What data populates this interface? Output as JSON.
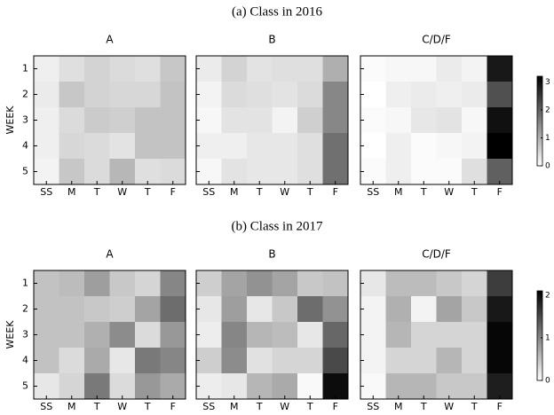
{
  "chart_data": [
    {
      "type": "heatmap",
      "title": "(a) Class in 2016",
      "ylabel": "WEEK",
      "x_categories": [
        "SS",
        "M",
        "T",
        "W",
        "T",
        "F"
      ],
      "y_categories": [
        1,
        2,
        3,
        4,
        5
      ],
      "colormap": "gray_r",
      "clim": [
        0,
        3.2
      ],
      "cticks": [
        0,
        1,
        2,
        3
      ],
      "panels": [
        {
          "title": "A",
          "values": [
            [
              0.2,
              0.4,
              0.55,
              0.45,
              0.4,
              0.7
            ],
            [
              0.25,
              0.7,
              0.55,
              0.5,
              0.5,
              0.75
            ],
            [
              0.2,
              0.45,
              0.65,
              0.6,
              0.75,
              0.75
            ],
            [
              0.2,
              0.5,
              0.45,
              0.35,
              0.75,
              0.75
            ],
            [
              0.15,
              0.7,
              0.45,
              0.9,
              0.4,
              0.45
            ]
          ]
        },
        {
          "title": "B",
          "values": [
            [
              0.25,
              0.55,
              0.35,
              0.4,
              0.4,
              1.0
            ],
            [
              0.15,
              0.45,
              0.4,
              0.35,
              0.45,
              1.5
            ],
            [
              0.1,
              0.35,
              0.35,
              0.15,
              0.6,
              1.5
            ],
            [
              0.2,
              0.2,
              0.3,
              0.3,
              0.4,
              1.8
            ],
            [
              0.1,
              0.35,
              0.3,
              0.3,
              0.4,
              1.8
            ]
          ]
        },
        {
          "title": "C/D/F",
          "values": [
            [
              0.05,
              0.1,
              0.1,
              0.25,
              0.15,
              2.9
            ],
            [
              0.0,
              0.2,
              0.25,
              0.2,
              0.25,
              2.2
            ],
            [
              0.05,
              0.1,
              0.3,
              0.35,
              0.1,
              3.0
            ],
            [
              0.0,
              0.2,
              0.05,
              0.1,
              0.15,
              3.2
            ],
            [
              0.05,
              0.2,
              0.05,
              0.05,
              0.4,
              2.0
            ]
          ]
        }
      ]
    },
    {
      "type": "heatmap",
      "title": "(b) Class in 2017",
      "ylabel": "WEEK",
      "x_categories": [
        "SS",
        "M",
        "T",
        "W",
        "T",
        "F"
      ],
      "y_categories": [
        1,
        2,
        3,
        4,
        5
      ],
      "colormap": "gray_r",
      "clim": [
        0,
        2.1
      ],
      "cticks": [
        0,
        1,
        2
      ],
      "panels": [
        {
          "title": "A",
          "values": [
            [
              0.5,
              0.55,
              0.8,
              0.45,
              0.35,
              1.0
            ],
            [
              0.5,
              0.5,
              0.45,
              0.4,
              0.75,
              1.2
            ],
            [
              0.5,
              0.5,
              0.65,
              0.95,
              0.3,
              0.85
            ],
            [
              0.5,
              0.3,
              0.7,
              0.2,
              1.1,
              1.0
            ],
            [
              0.2,
              0.35,
              1.1,
              0.3,
              0.85,
              0.7
            ]
          ]
        },
        {
          "title": "B",
          "values": [
            [
              0.4,
              0.75,
              0.9,
              0.75,
              0.45,
              0.5
            ],
            [
              0.2,
              0.8,
              0.2,
              0.45,
              1.2,
              0.9
            ],
            [
              0.15,
              1.0,
              0.6,
              0.55,
              0.2,
              1.25
            ],
            [
              0.4,
              0.95,
              0.25,
              0.35,
              0.35,
              1.5
            ],
            [
              0.15,
              0.2,
              0.6,
              0.7,
              0.05,
              2.0
            ]
          ]
        },
        {
          "title": "C/D/F",
          "values": [
            [
              0.2,
              0.55,
              0.55,
              0.45,
              0.35,
              1.6
            ],
            [
              0.1,
              0.65,
              0.1,
              0.75,
              0.45,
              1.9
            ],
            [
              0.1,
              0.6,
              0.35,
              0.35,
              0.35,
              2.05
            ],
            [
              0.1,
              0.35,
              0.35,
              0.6,
              0.35,
              2.05
            ],
            [
              0.05,
              0.6,
              0.6,
              0.45,
              0.45,
              1.85
            ]
          ]
        }
      ]
    }
  ]
}
